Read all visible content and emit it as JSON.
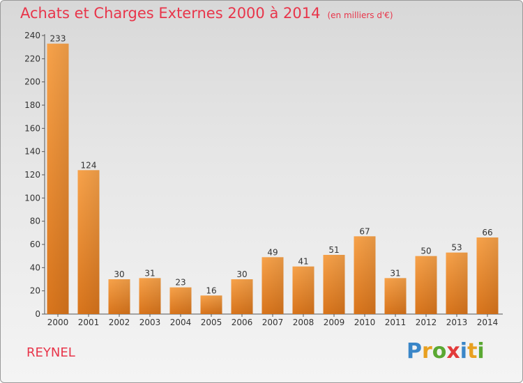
{
  "chart_data": {
    "type": "bar",
    "title": "Achats et Charges Externes 2000 à 2014",
    "subtitle": "(en milliers d'€)",
    "categories": [
      "2000",
      "2001",
      "2002",
      "2003",
      "2004",
      "2005",
      "2006",
      "2007",
      "2008",
      "2009",
      "2010",
      "2011",
      "2012",
      "2013",
      "2014"
    ],
    "values": [
      233,
      124,
      30,
      31,
      23,
      16,
      30,
      49,
      41,
      51,
      67,
      31,
      50,
      53,
      66
    ],
    "ylim": [
      0,
      240
    ],
    "yticks": [
      0,
      20,
      40,
      60,
      80,
      100,
      120,
      140,
      160,
      180,
      200,
      220,
      240
    ],
    "grid": false,
    "bar_color": "#f0973a"
  },
  "commune": "REYNEL",
  "logo": {
    "text": "Proxiti",
    "letters": [
      {
        "ch": "P",
        "color": "#3a86c8"
      },
      {
        "ch": "r",
        "color": "#e8a020"
      },
      {
        "ch": "o",
        "color": "#5aa832"
      },
      {
        "ch": "x",
        "color": "#e23a3a"
      },
      {
        "ch": "i",
        "color": "#3a86c8"
      },
      {
        "ch": "t",
        "color": "#e8a020"
      },
      {
        "ch": "i",
        "color": "#5aa832"
      }
    ]
  },
  "colors": {
    "title": "#e8354a",
    "axis": "#333333"
  }
}
